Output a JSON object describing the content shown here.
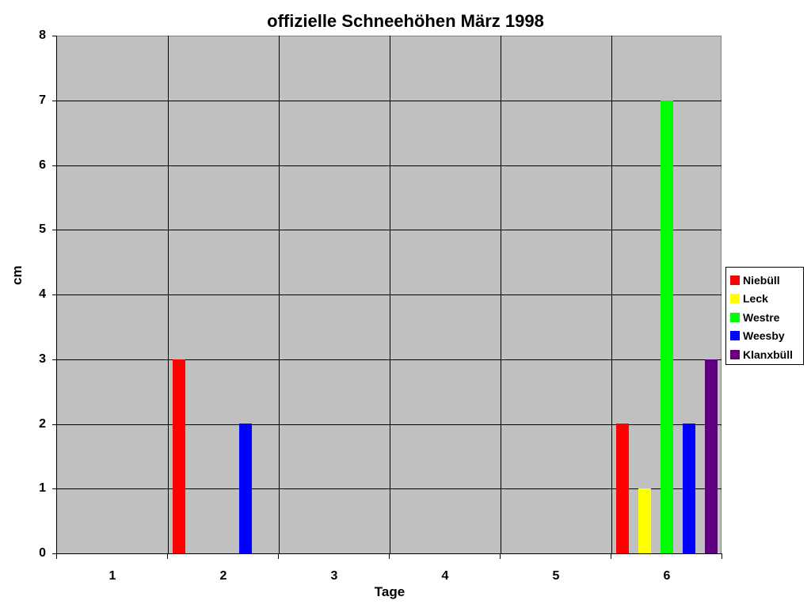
{
  "chart_data": {
    "type": "bar",
    "title": "offizielle Schneehöhen März 1998",
    "xlabel": "Tage",
    "ylabel": "cm",
    "ylim": [
      0,
      8
    ],
    "yticks": [
      "0",
      "1",
      "2",
      "3",
      "4",
      "5",
      "6",
      "7",
      "8"
    ],
    "categories": [
      "1",
      "2",
      "3",
      "4",
      "5",
      "6"
    ],
    "grid": true,
    "legend_position": "right",
    "series": [
      {
        "name": "Niebüll",
        "color": "#ff0000",
        "values": [
          0,
          3,
          0,
          0,
          0,
          2
        ]
      },
      {
        "name": "Leck",
        "color": "#ffff00",
        "values": [
          0,
          0,
          0,
          0,
          0,
          1
        ]
      },
      {
        "name": "Westre",
        "color": "#00ff00",
        "values": [
          0,
          0,
          0,
          0,
          0,
          7
        ]
      },
      {
        "name": "Weesby",
        "color": "#0000ff",
        "values": [
          0,
          2,
          0,
          0,
          0,
          2
        ]
      },
      {
        "name": "Klanxbüll",
        "color": "#600080",
        "values": [
          0,
          0,
          0,
          0,
          0,
          3
        ]
      }
    ]
  }
}
